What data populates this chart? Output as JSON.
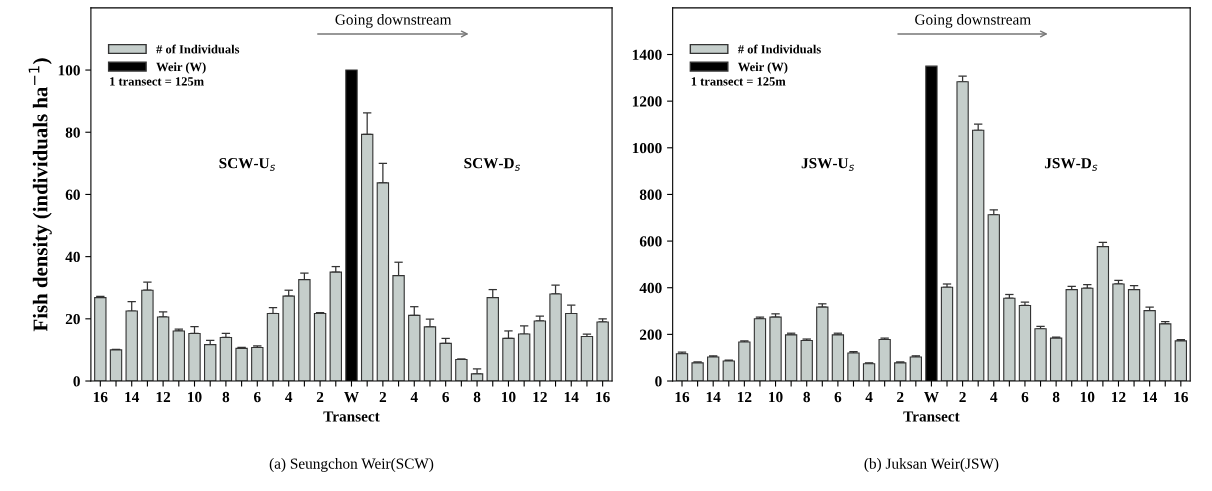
{
  "chart_data": [
    {
      "type": "bar",
      "xlabel": "Transect",
      "ylabel": "Fish density (individuals ha$^{−1}$)",
      "categories": [
        "16",
        null,
        "14",
        null,
        "12",
        null,
        "10",
        null,
        "8",
        null,
        "6",
        null,
        "4",
        null,
        "2",
        null,
        "W",
        null,
        "2",
        null,
        "4",
        null,
        "6",
        null,
        "8",
        null,
        "10",
        null,
        "12",
        null,
        "14",
        null,
        "16"
      ],
      "series": [
        {
          "name": "# of Individuals",
          "color": "#c5cecb",
          "values": [
            26.8,
            10.0,
            22.5,
            29.2,
            20.6,
            16.1,
            15.3,
            11.7,
            14.0,
            10.5,
            10.8,
            21.7,
            27.3,
            32.6,
            21.7,
            35.0,
            null,
            79.3,
            63.7,
            33.9,
            21.1,
            17.4,
            12.1,
            6.9,
            2.3,
            26.8,
            13.7,
            15.1,
            19.3,
            28.0,
            21.7,
            14.3,
            19.0
          ],
          "errors": [
            [
              26.8,
              27.2
            ],
            [
              10.0,
              10.2
            ],
            [
              22.5,
              25.5
            ],
            [
              29.2,
              31.8
            ],
            [
              20.6,
              22.2
            ],
            [
              16.1,
              16.7
            ],
            [
              15.3,
              17.5
            ],
            [
              11.7,
              13.1
            ],
            [
              14.0,
              15.3
            ],
            [
              10.5,
              10.8
            ],
            [
              10.8,
              11.3
            ],
            [
              21.7,
              23.6
            ],
            [
              27.3,
              29.2
            ],
            [
              32.6,
              34.7
            ],
            [
              21.7,
              22.0
            ],
            [
              35.0,
              36.8
            ],
            null,
            [
              79.3,
              86.2
            ],
            [
              63.7,
              70.0
            ],
            [
              33.9,
              38.2
            ],
            [
              21.1,
              23.9
            ],
            [
              17.4,
              19.9
            ],
            [
              12.1,
              13.7
            ],
            [
              6.9,
              7.1
            ],
            [
              2.3,
              3.9
            ],
            [
              26.8,
              29.4
            ],
            [
              13.7,
              16.1
            ],
            [
              15.1,
              17.7
            ],
            [
              19.3,
              20.9
            ],
            [
              28.0,
              30.8
            ],
            [
              21.7,
              24.4
            ],
            [
              14.3,
              15.1
            ],
            [
              19.0,
              20.0
            ]
          ]
        },
        {
          "name": "Weir (W)",
          "color": "#000000",
          "values": [
            null,
            null,
            null,
            null,
            null,
            null,
            null,
            null,
            null,
            null,
            null,
            null,
            null,
            null,
            null,
            null,
            100,
            null,
            null,
            null,
            null,
            null,
            null,
            null,
            null,
            null,
            null,
            null,
            null,
            null,
            null,
            null,
            null
          ]
        }
      ],
      "ylim": [
        0,
        120
      ],
      "yticks": [
        0,
        20,
        40,
        60,
        80,
        100
      ],
      "grid": false,
      "legend": "top left",
      "annotations": [
        "Going downstream",
        "1 transect = 125m",
        "SCW-U$_{s}$",
        "SCW-D$_{s}$",
        "(a) Seungchon Weir(SCW)"
      ]
    },
    {
      "type": "bar",
      "xlabel": "Transect",
      "categories": [
        "16",
        null,
        "14",
        null,
        "12",
        null,
        "10",
        null,
        "8",
        null,
        "6",
        null,
        "4",
        null,
        "2",
        null,
        "W",
        null,
        "2",
        null,
        "4",
        null,
        "6",
        null,
        "8",
        null,
        "10",
        null,
        "12",
        null,
        "14",
        null,
        "16"
      ],
      "series": [
        {
          "name": "# of Individuals",
          "color": "#c5cecb",
          "values": [
            117,
            78,
            103,
            86,
            167,
            267,
            274,
            198,
            174,
            317,
            198,
            120,
            74,
            178,
            78,
            103,
            null,
            402,
            1283,
            1075,
            713,
            355,
            324,
            224,
            184,
            392,
            398,
            576,
            416,
            392,
            302,
            245,
            172
          ],
          "errors": [
            [
              117,
              124
            ],
            [
              78,
              82
            ],
            [
              103,
              108
            ],
            [
              86,
              90
            ],
            [
              167,
              172
            ],
            [
              267,
              274
            ],
            [
              274,
              288
            ],
            [
              198,
              205
            ],
            [
              174,
              180
            ],
            [
              317,
              331
            ],
            [
              198,
              205
            ],
            [
              120,
              126
            ],
            [
              74,
              78
            ],
            [
              178,
              184
            ],
            [
              78,
              82
            ],
            [
              103,
              108
            ],
            null,
            [
              402,
              416
            ],
            [
              1283,
              1307
            ],
            [
              1075,
              1101
            ],
            [
              713,
              734
            ],
            [
              355,
              371
            ],
            [
              324,
              338
            ],
            [
              224,
              234
            ],
            [
              184,
              188
            ],
            [
              392,
              406
            ],
            [
              398,
              413
            ],
            [
              576,
              594
            ],
            [
              416,
              431
            ],
            [
              392,
              409
            ],
            [
              302,
              317
            ],
            [
              245,
              255
            ],
            [
              172,
              177
            ]
          ]
        },
        {
          "name": "Weir (W)",
          "color": "#000000",
          "values": [
            null,
            null,
            null,
            null,
            null,
            null,
            null,
            null,
            null,
            null,
            null,
            null,
            null,
            null,
            null,
            null,
            1350,
            null,
            null,
            null,
            null,
            null,
            null,
            null,
            null,
            null,
            null,
            null,
            null,
            null,
            null,
            null,
            null
          ]
        }
      ],
      "ylim": [
        0,
        1600
      ],
      "yticks": [
        0,
        200,
        400,
        600,
        800,
        1000,
        1200,
        1400
      ],
      "grid": false,
      "legend": "top left",
      "annotations": [
        "Going downstream",
        "1 transect = 125m",
        "JSW-U$_{s}$",
        "JSW-D$_{s}$",
        "(b) Juksan Weir(JSW)"
      ]
    }
  ]
}
